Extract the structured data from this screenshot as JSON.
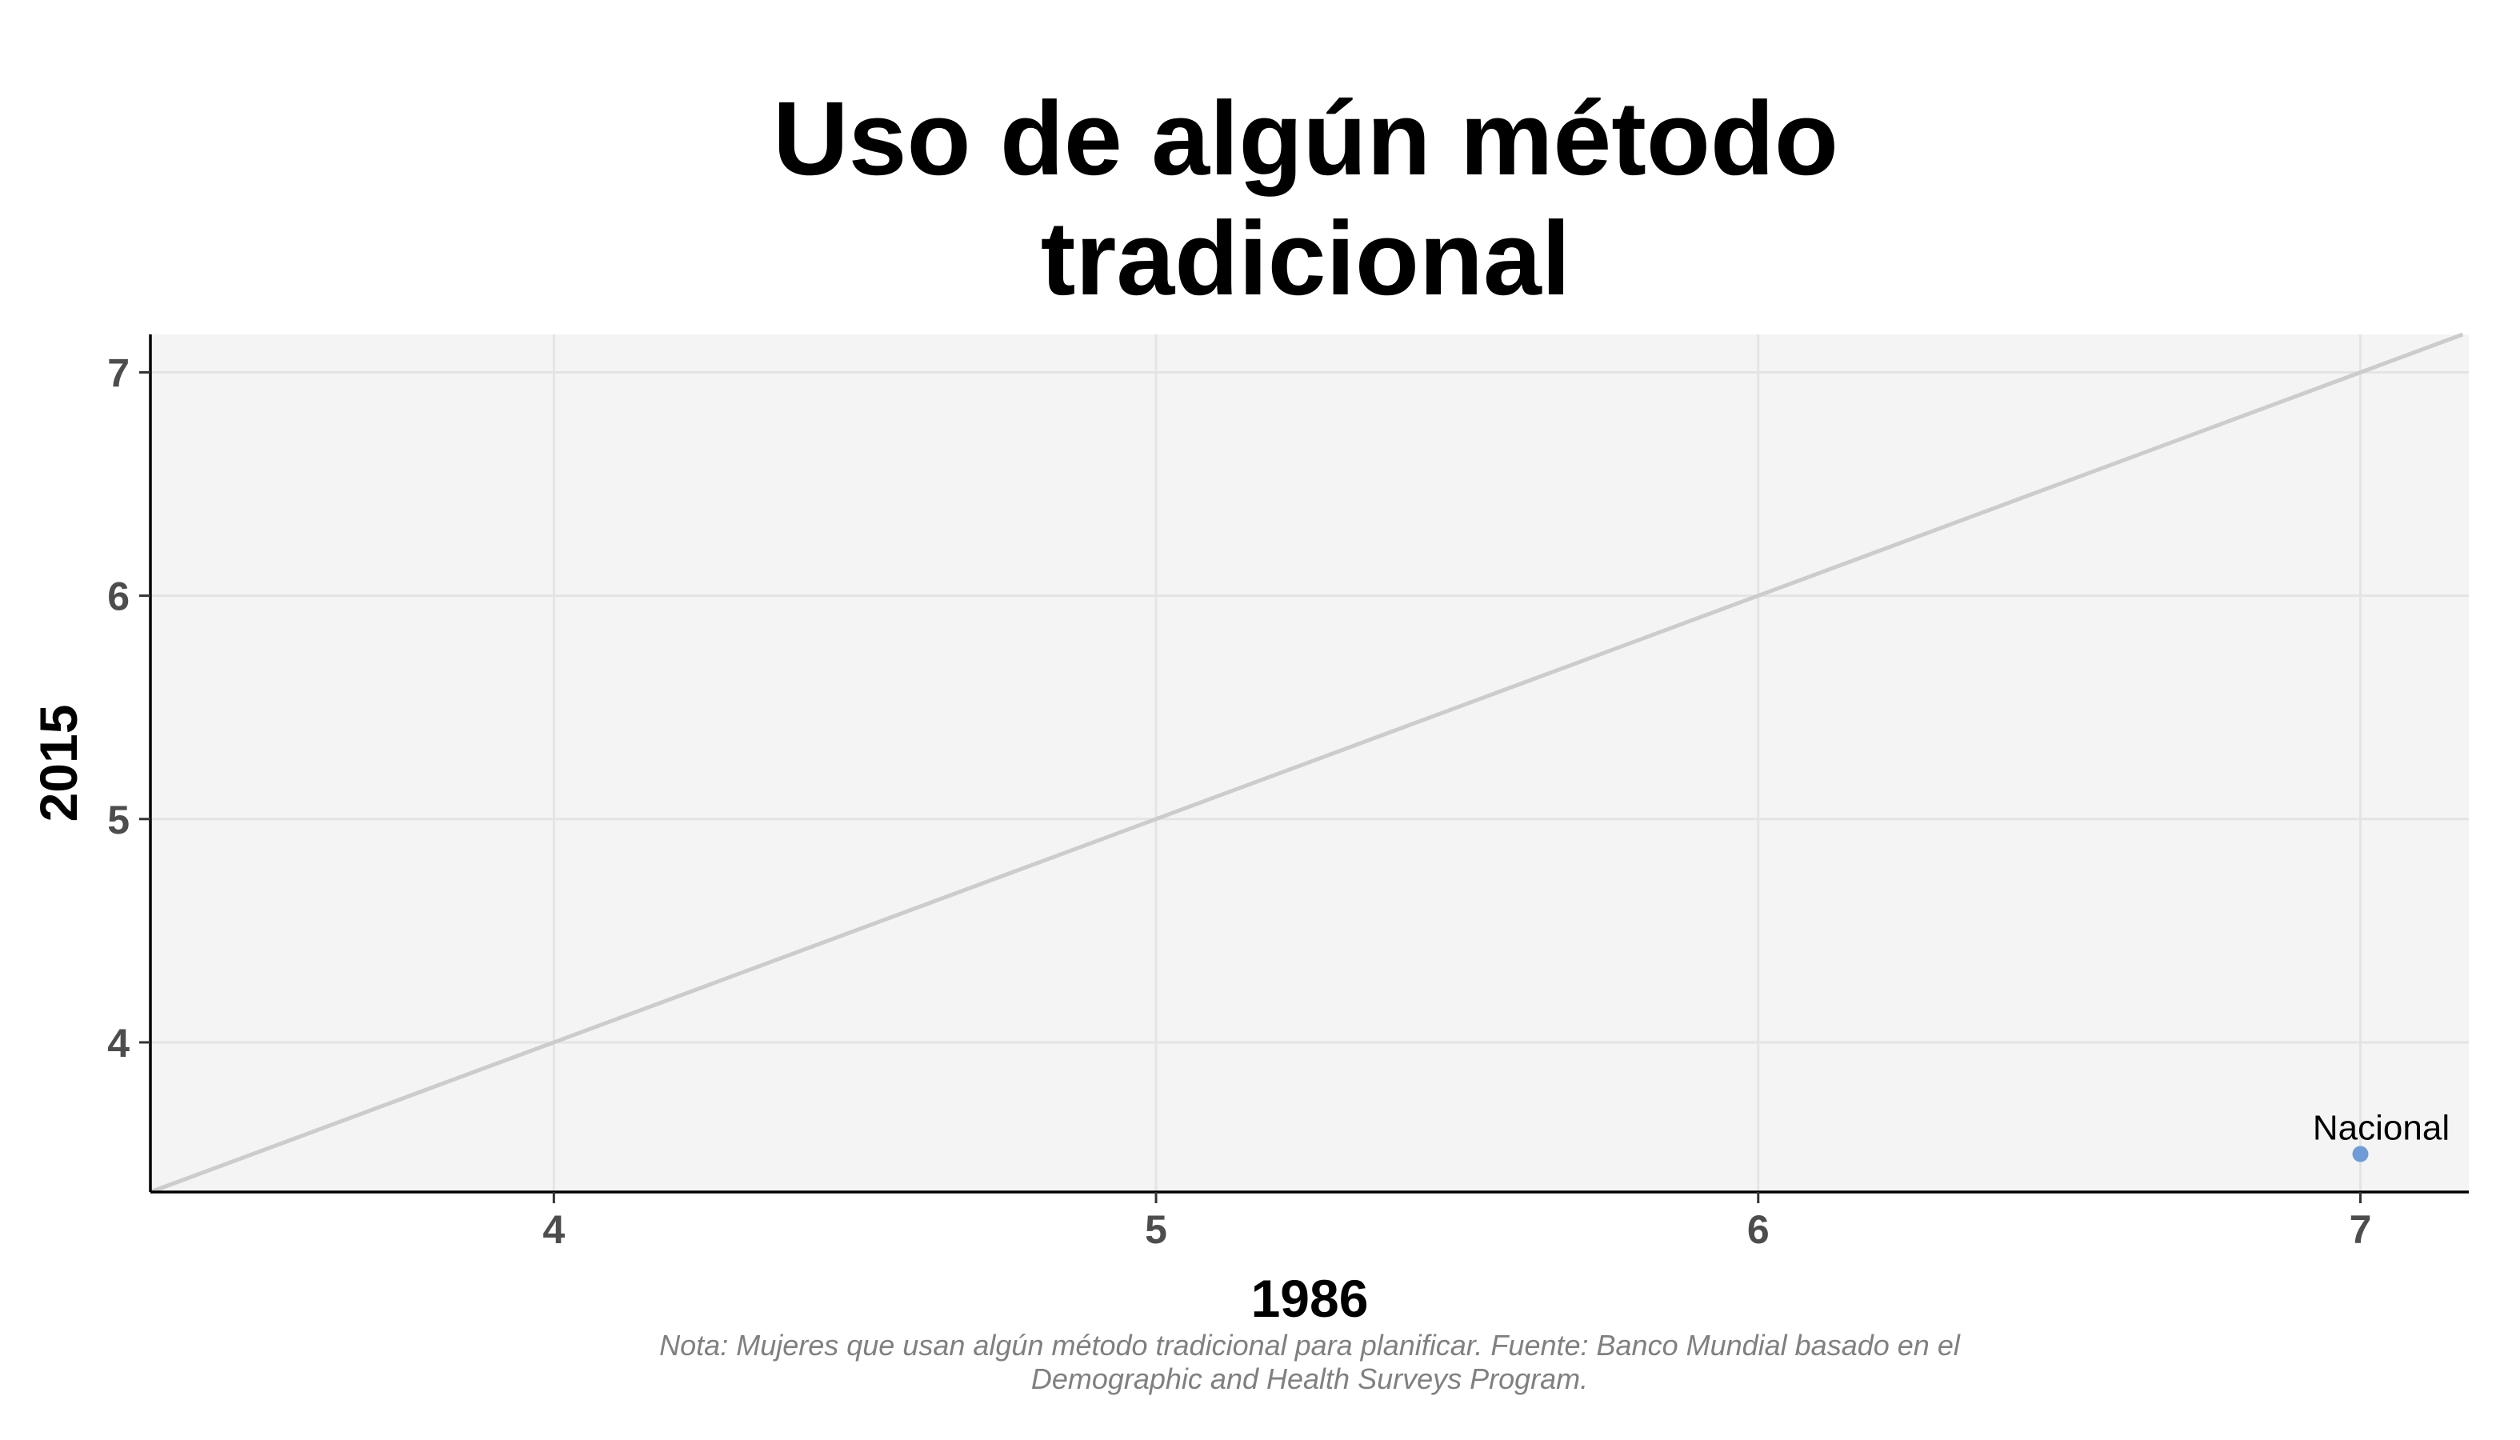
{
  "chart_data": {
    "type": "scatter",
    "title": [
      "Uso de algún método",
      "tradicional"
    ],
    "xlabel": "1986",
    "ylabel": "2015",
    "xlim": [
      3.33,
      7.18
    ],
    "ylim": [
      3.33,
      7.17
    ],
    "xticks": [
      4,
      5,
      6,
      7
    ],
    "yticks": [
      4,
      5,
      6,
      7
    ],
    "grid": true,
    "reference_line": "y = x",
    "points": [
      {
        "label": "Nacional",
        "x": 7.0,
        "y": 3.5
      }
    ],
    "caption": [
      "Nota: Mujeres que usan algún método tradicional para planificar. Fuente: Banco Mundial basado en el",
      "Demographic and Health Surveys Program."
    ],
    "colors": {
      "panel_background": "#f4f4f4",
      "grid": "#e4e4e4",
      "reference_line": "#cccccc",
      "point": "#6f9bd6"
    }
  }
}
